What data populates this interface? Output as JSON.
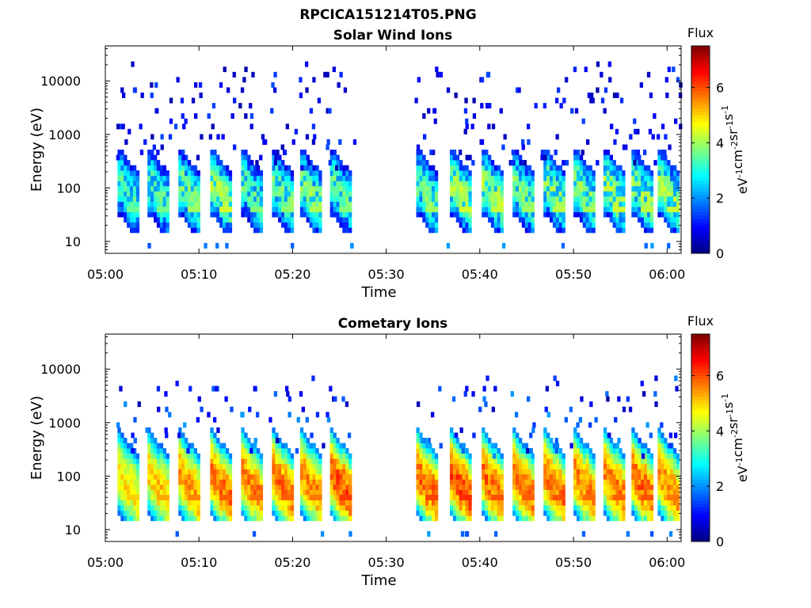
{
  "figure": {
    "title": "RPCICA151214T05.PNG"
  },
  "colormap": {
    "name": "jet",
    "stops": [
      "#00007f",
      "#0000ff",
      "#0080ff",
      "#00ffff",
      "#80ff80",
      "#ffff00",
      "#ff8000",
      "#ff0000",
      "#7f0000"
    ]
  },
  "chart_data": [
    {
      "type": "heatmap",
      "title": "Solar Wind Ions",
      "xlabel": "Time",
      "ylabel": "Energy (eV)",
      "x_unit": "minutes after 05:00",
      "xlim": [
        0,
        61.5
      ],
      "xticks": [
        0,
        10,
        20,
        30,
        40,
        50,
        60
      ],
      "xtick_labels": [
        "05:00",
        "05:10",
        "05:20",
        "05:30",
        "05:40",
        "05:50",
        "06:00"
      ],
      "yscale": "log",
      "ylim": [
        6,
        45000
      ],
      "yticks": [
        10,
        100,
        1000,
        10000
      ],
      "ytick_labels": [
        "10",
        "100",
        "1000",
        "10000"
      ],
      "colorbar": {
        "title": "Flux",
        "label": "eV-1cm-2sr-1s-1",
        "range": [
          0,
          7.5
        ],
        "ticks": [
          0,
          2,
          4,
          6
        ],
        "tick_labels": [
          "0",
          "2",
          "4",
          "6"
        ]
      },
      "data_gap": [
        26.2,
        32.5
      ],
      "bursts": [
        {
          "start": 1.3,
          "peak_flux": 3.8
        },
        {
          "start": 4.5,
          "peak_flux": 3.9
        },
        {
          "start": 7.8,
          "peak_flux": 4.2
        },
        {
          "start": 11.2,
          "peak_flux": 4.6
        },
        {
          "start": 14.5,
          "peak_flux": 4.0
        },
        {
          "start": 17.8,
          "peak_flux": 4.1
        },
        {
          "start": 20.8,
          "peak_flux": 4.3
        },
        {
          "start": 24.0,
          "peak_flux": 4.0
        },
        {
          "start": 33.2,
          "peak_flux": 4.2
        },
        {
          "start": 36.8,
          "peak_flux": 4.6
        },
        {
          "start": 40.2,
          "peak_flux": 4.5
        },
        {
          "start": 43.5,
          "peak_flux": 4.2
        },
        {
          "start": 46.8,
          "peak_flux": 4.4
        },
        {
          "start": 50.0,
          "peak_flux": 4.3
        },
        {
          "start": 53.2,
          "peak_flux": 4.6
        },
        {
          "start": 56.2,
          "peak_flux": 4.4
        },
        {
          "start": 59.0,
          "peak_flux": 4.5
        }
      ]
    },
    {
      "type": "heatmap",
      "title": "Cometary Ions",
      "xlabel": "Time",
      "ylabel": "Energy (eV)",
      "x_unit": "minutes after 05:00",
      "xlim": [
        0,
        61.5
      ],
      "xticks": [
        0,
        10,
        20,
        30,
        40,
        50,
        60
      ],
      "xtick_labels": [
        "05:00",
        "05:10",
        "05:20",
        "05:30",
        "05:40",
        "05:50",
        "06:00"
      ],
      "yscale": "log",
      "ylim": [
        6,
        45000
      ],
      "yticks": [
        10,
        100,
        1000,
        10000
      ],
      "ytick_labels": [
        "10",
        "100",
        "1000",
        "10000"
      ],
      "colorbar": {
        "title": "Flux",
        "label": "eV-1cm-2sr-1s-1",
        "range": [
          0,
          7.5
        ],
        "ticks": [
          0,
          2,
          4,
          6
        ],
        "tick_labels": [
          "0",
          "2",
          "4",
          "6"
        ]
      },
      "data_gap": [
        26.2,
        32.5
      ],
      "bursts": [
        {
          "start": 1.3,
          "peak_flux": 5.3
        },
        {
          "start": 4.5,
          "peak_flux": 5.6
        },
        {
          "start": 7.8,
          "peak_flux": 5.9
        },
        {
          "start": 11.2,
          "peak_flux": 6.2
        },
        {
          "start": 14.5,
          "peak_flux": 6.1
        },
        {
          "start": 17.8,
          "peak_flux": 6.2
        },
        {
          "start": 20.8,
          "peak_flux": 6.0
        },
        {
          "start": 24.0,
          "peak_flux": 6.5
        },
        {
          "start": 33.2,
          "peak_flux": 6.4
        },
        {
          "start": 36.8,
          "peak_flux": 6.6
        },
        {
          "start": 40.2,
          "peak_flux": 6.3
        },
        {
          "start": 43.5,
          "peak_flux": 6.2
        },
        {
          "start": 46.8,
          "peak_flux": 6.3
        },
        {
          "start": 50.0,
          "peak_flux": 6.1
        },
        {
          "start": 53.2,
          "peak_flux": 6.2
        },
        {
          "start": 56.2,
          "peak_flux": 6.3
        },
        {
          "start": 59.0,
          "peak_flux": 6.0
        }
      ]
    }
  ]
}
